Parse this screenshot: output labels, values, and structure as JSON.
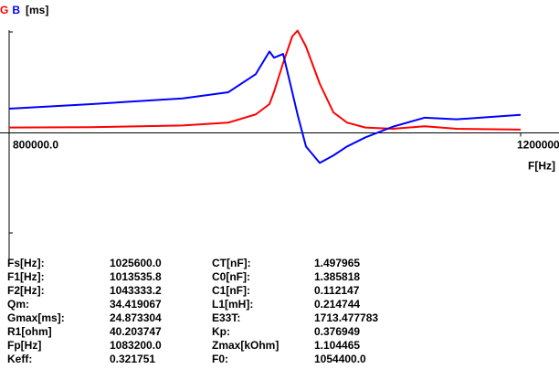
{
  "chart_data": {
    "type": "line",
    "y_label": "[ms]",
    "x_label": "F[Hz]",
    "x": [
      800000,
      864286,
      935714,
      971429,
      992857,
      1003571,
      1007143,
      1014286,
      1021429,
      1025600,
      1032143,
      1042857,
      1053571,
      1064286,
      1078571,
      1100000,
      1125000,
      1150000,
      1200000
    ],
    "series": [
      {
        "name": "G",
        "color": "#ff0000",
        "values": [
          1.3,
          1.4,
          1.8,
          2.5,
          4.5,
          7,
          10,
          17,
          23.5,
          24.873304,
          21,
          12,
          5,
          2.5,
          1.3,
          1.0,
          1.6,
          1.0,
          0.8
        ]
      },
      {
        "name": "B",
        "color": "#0000ff",
        "values": [
          5.9,
          7.0,
          8.4,
          9.9,
          14.3,
          19.8,
          18.3,
          19.2,
          9.9,
          4.4,
          -3.3,
          -7.3,
          -5.5,
          -3.3,
          -1.1,
          1.5,
          3.7,
          3.3,
          4.4
        ]
      }
    ],
    "xlim": [
      800000,
      1200000
    ],
    "xticks": [
      {
        "value": 800000,
        "label": "800000.0"
      },
      {
        "value": 1200000,
        "label": "1200000."
      }
    ],
    "ylim": [
      -31,
      29
    ]
  },
  "table": {
    "rows": [
      [
        "Fs[Hz]:",
        "1025600.0",
        "CT[nF]:",
        "1.497965"
      ],
      [
        "F1[Hz]:",
        "1013535.8",
        "C0[nF]:",
        "1.385818"
      ],
      [
        "F2[Hz]:",
        "1043333.2",
        "C1[nF]:",
        "0.112147"
      ],
      [
        "Qm:",
        "34.419067",
        "L1[mH]:",
        "0.214744"
      ],
      [
        "Gmax[ms]:",
        "24.873304",
        "E33T:",
        "1713.477783"
      ],
      [
        "R1[ohm]",
        "40.203747",
        "Kp:",
        "0.376949"
      ],
      [
        "Fp[Hz]",
        "1083200.0",
        "Zmax[kOhm]",
        "1.104465"
      ],
      [
        "Keff:",
        "0.321751",
        "F0:",
        "1054400.0"
      ]
    ]
  }
}
